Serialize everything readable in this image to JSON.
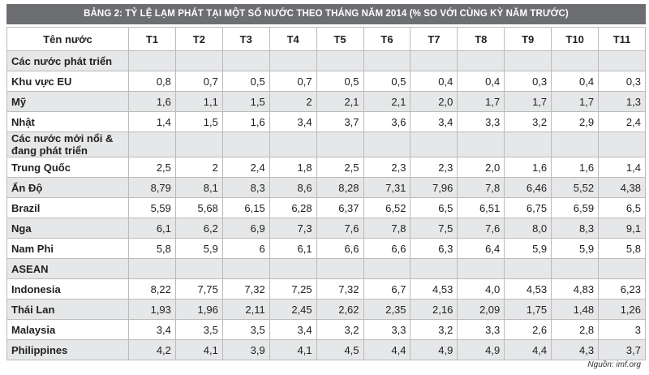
{
  "header": {
    "title": "BẢNG 2: TỶ LỆ LẠM PHÁT TẠI MỘT SỐ NƯỚC THEO THÁNG NĂM 2014 (% SO VỚI CÙNG KỲ NĂM TRƯỚC)"
  },
  "table": {
    "columns": [
      "Tên nước",
      "T1",
      "T2",
      "T3",
      "T4",
      "T5",
      "T6",
      "T7",
      "T8",
      "T9",
      "T10",
      "T11"
    ],
    "rows": [
      {
        "section": "Các nước phát triển"
      },
      {
        "name": "Khu vực EU",
        "values": [
          "0,8",
          "0,7",
          "0,5",
          "0,7",
          "0,5",
          "0,5",
          "0,4",
          "0,4",
          "0,3",
          "0,4",
          "0,3"
        ]
      },
      {
        "name": "Mỹ",
        "values": [
          "1,6",
          "1,1",
          "1,5",
          "2",
          "2,1",
          "2,1",
          "2,0",
          "1,7",
          "1,7",
          "1,7",
          "1,3"
        ]
      },
      {
        "name": "Nhật",
        "values": [
          "1,4",
          "1,5",
          "1,6",
          "3,4",
          "3,7",
          "3,6",
          "3,4",
          "3,3",
          "3,2",
          "2,9",
          "2,4"
        ]
      },
      {
        "section": "Các nước mới nổi & đang phát triển"
      },
      {
        "name": "Trung Quốc",
        "values": [
          "2,5",
          "2",
          "2,4",
          "1,8",
          "2,5",
          "2,3",
          "2,3",
          "2,0",
          "1,6",
          "1,6",
          "1,4"
        ]
      },
      {
        "name": "Ấn Độ",
        "values": [
          "8,79",
          "8,1",
          "8,3",
          "8,6",
          "8,28",
          "7,31",
          "7,96",
          "7,8",
          "6,46",
          "5,52",
          "4,38"
        ]
      },
      {
        "name": "Brazil",
        "values": [
          "5,59",
          "5,68",
          "6,15",
          "6,28",
          "6,37",
          "6,52",
          "6,5",
          "6,51",
          "6,75",
          "6,59",
          "6,5"
        ]
      },
      {
        "name": "Nga",
        "values": [
          "6,1",
          "6,2",
          "6,9",
          "7,3",
          "7,6",
          "7,8",
          "7,5",
          "7,6",
          "8,0",
          "8,3",
          "9,1"
        ]
      },
      {
        "name": "Nam Phi",
        "values": [
          "5,8",
          "5,9",
          "6",
          "6,1",
          "6,6",
          "6,6",
          "6,3",
          "6,4",
          "5,9",
          "5,9",
          "5,8"
        ]
      },
      {
        "section": "ASEAN"
      },
      {
        "name": "Indonesia",
        "values": [
          "8,22",
          "7,75",
          "7,32",
          "7,25",
          "7,32",
          "6,7",
          "4,53",
          "4,0",
          "4,53",
          "4,83",
          "6,23"
        ]
      },
      {
        "name": "Thái Lan",
        "values": [
          "1,93",
          "1,96",
          "2,11",
          "2,45",
          "2,62",
          "2,35",
          "2,16",
          "2,09",
          "1,75",
          "1,48",
          "1,26"
        ]
      },
      {
        "name": "Malaysia",
        "values": [
          "3,4",
          "3,5",
          "3,5",
          "3,4",
          "3,2",
          "3,3",
          "3,2",
          "3,3",
          "2,6",
          "2,8",
          "3"
        ]
      },
      {
        "name": "Philippines",
        "values": [
          "4,2",
          "4,1",
          "3,9",
          "4,1",
          "4,5",
          "4,4",
          "4,9",
          "4,9",
          "4,4",
          "4,3",
          "3,7"
        ]
      }
    ]
  },
  "footer": {
    "source": "Nguồn: imf.org"
  }
}
